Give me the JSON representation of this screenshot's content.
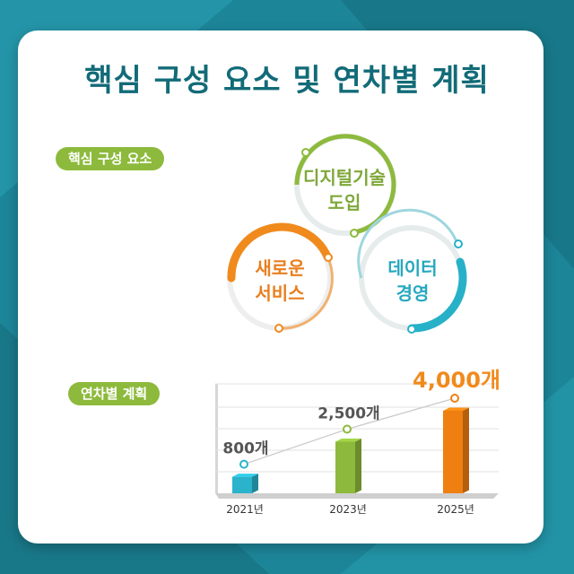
{
  "title": "핵심 구성 요소 및 연차별 계획",
  "core_section": {
    "label": "핵심 구성 요소",
    "items": [
      {
        "line1": "디지털기술",
        "line2": "도입",
        "color": "#8dba3c"
      },
      {
        "line1": "새로운",
        "line2": "서비스",
        "color": "#f08a1c"
      },
      {
        "line1": "데이터",
        "line2": "경영",
        "color": "#27b1c8"
      }
    ]
  },
  "plan_section": {
    "label": "연차별 계획"
  },
  "chart_data": {
    "type": "bar",
    "categories": [
      "2021년",
      "2023년",
      "2025년"
    ],
    "values": [
      800,
      2500,
      4000
    ],
    "data_labels": [
      "800개",
      "2,500개",
      "4,000개"
    ],
    "colors": [
      "#2bb3cc",
      "#8dba3c",
      "#f07f12"
    ],
    "ylim": [
      0,
      4000
    ],
    "grid": true,
    "trend_line": true
  }
}
